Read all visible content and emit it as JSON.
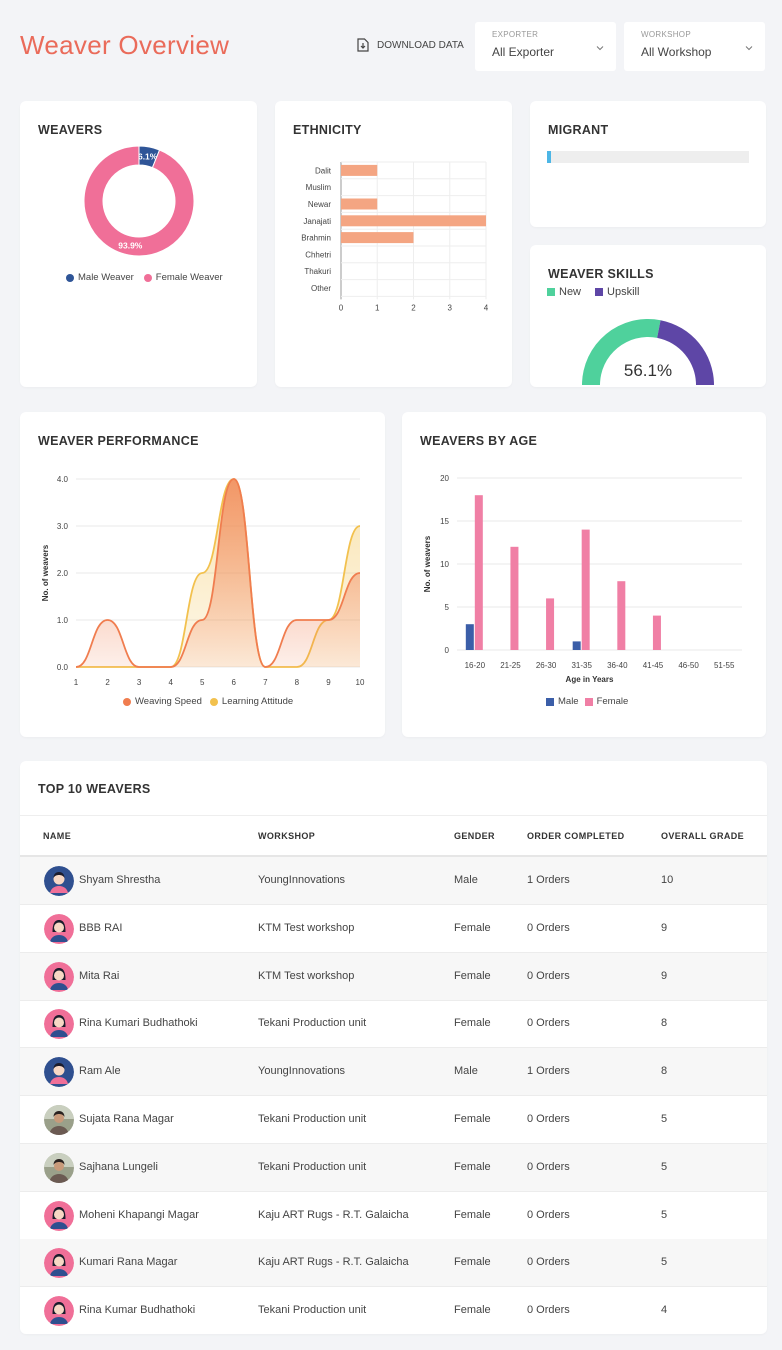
{
  "header": {
    "title": "Weaver Overview",
    "download_label": "DOWNLOAD DATA",
    "exporter": {
      "label": "EXPORTER",
      "value": "All Exporter"
    },
    "workshop": {
      "label": "WORKSHOP",
      "value": "All Workshop"
    }
  },
  "weavers_card": {
    "title": "WEAVERS",
    "chart_data": {
      "type": "pie",
      "categories": [
        "Male Weaver",
        "Female Weaver"
      ],
      "values": [
        6.1,
        93.9
      ],
      "labels": [
        "6.1%",
        "93.9%"
      ],
      "colors": [
        "#2f5597",
        "#f06f98"
      ]
    }
  },
  "ethnicity_card": {
    "title": "ETHNICITY",
    "chart_data": {
      "type": "bar",
      "orientation": "horizontal",
      "categories": [
        "Dalit",
        "Muslim",
        "Newar",
        "Janajati",
        "Brahmin",
        "Chhetri",
        "Thakuri",
        "Other"
      ],
      "values": [
        1,
        0,
        1,
        4,
        2,
        0,
        0,
        0
      ],
      "xlim": [
        0,
        4
      ],
      "xticks": [
        "0",
        "1",
        "2",
        "3",
        "4"
      ],
      "color": "#f4a582"
    }
  },
  "migrant_card": {
    "title": "MIGRANT",
    "progress_fraction": 0.02
  },
  "skills_card": {
    "title": "WEAVER SKILLS",
    "legend": [
      "New",
      "Upskill"
    ],
    "colors": [
      "#4fd19c",
      "#5e46a6"
    ],
    "center_label": "56.1%",
    "new_fraction": 0.561
  },
  "performance_card": {
    "title": "WEAVER PERFORMANCE",
    "chart_data": {
      "type": "area",
      "x": [
        1,
        2,
        3,
        4,
        5,
        6,
        7,
        8,
        9,
        10
      ],
      "series": [
        {
          "name": "Weaving Speed",
          "values": [
            0,
            1,
            0,
            0,
            1,
            4,
            0,
            1,
            1,
            2
          ],
          "color": "#f07d4f"
        },
        {
          "name": "Learning Attitude",
          "values": [
            0,
            0,
            0,
            0,
            2,
            4,
            0,
            0,
            1,
            3
          ],
          "color": "#f2c14e"
        }
      ],
      "ylabel": "No. of weavers",
      "ylim": [
        0,
        4
      ],
      "yticks": [
        "0.0",
        "1.0",
        "2.0",
        "3.0",
        "4.0"
      ],
      "xticks": [
        "1",
        "2",
        "3",
        "4",
        "5",
        "6",
        "7",
        "8",
        "9",
        "10"
      ]
    }
  },
  "age_card": {
    "title": "WEAVERS BY AGE",
    "chart_data": {
      "type": "bar",
      "categories": [
        "16-20",
        "21-25",
        "26-30",
        "31-35",
        "36-40",
        "41-45",
        "46-50",
        "51-55"
      ],
      "series": [
        {
          "name": "Male",
          "values": [
            3,
            0,
            0,
            1,
            0,
            0,
            0,
            0
          ],
          "color": "#3b5ea8"
        },
        {
          "name": "Female",
          "values": [
            18,
            12,
            6,
            14,
            8,
            4,
            0,
            0
          ],
          "color": "#f07fa5"
        }
      ],
      "ylabel": "No. of weavers",
      "xlabel": "Age in Years",
      "ylim": [
        0,
        20
      ],
      "yticks": [
        "0",
        "5",
        "10",
        "15",
        "20"
      ]
    }
  },
  "top_weavers": {
    "title": "TOP 10 WEAVERS",
    "columns": [
      "NAME",
      "WORKSHOP",
      "GENDER",
      "ORDER COMPLETED",
      "OVERALL GRADE"
    ],
    "rows": [
      {
        "name": "Shyam Shrestha",
        "workshop": "YoungInnovations",
        "gender": "Male",
        "orders": "1 Orders",
        "grade": "10",
        "avatar": "male-avatar-icon"
      },
      {
        "name": "BBB RAI",
        "workshop": "KTM Test workshop",
        "gender": "Female",
        "orders": "0 Orders",
        "grade": "9",
        "avatar": "female-avatar-icon"
      },
      {
        "name": "Mita Rai",
        "workshop": "KTM Test workshop",
        "gender": "Female",
        "orders": "0 Orders",
        "grade": "9",
        "avatar": "female-avatar-icon"
      },
      {
        "name": "Rina Kumari Budhathoki",
        "workshop": "Tekani Production unit",
        "gender": "Female",
        "orders": "0 Orders",
        "grade": "8",
        "avatar": "female-avatar-icon"
      },
      {
        "name": "Ram Ale",
        "workshop": "YoungInnovations",
        "gender": "Male",
        "orders": "1 Orders",
        "grade": "8",
        "avatar": "male-avatar-icon"
      },
      {
        "name": "Sujata Rana Magar",
        "workshop": "Tekani Production unit",
        "gender": "Female",
        "orders": "0 Orders",
        "grade": "5",
        "avatar": "photo-avatar-icon"
      },
      {
        "name": "Sajhana Lungeli",
        "workshop": "Tekani Production unit",
        "gender": "Female",
        "orders": "0 Orders",
        "grade": "5",
        "avatar": "photo-avatar-icon"
      },
      {
        "name": "Moheni Khapangi Magar",
        "workshop": "Kaju ART Rugs - R.T. Galaicha",
        "gender": "Female",
        "orders": "0 Orders",
        "grade": "5",
        "avatar": "female-avatar-icon"
      },
      {
        "name": "Kumari Rana Magar",
        "workshop": "Kaju ART Rugs - R.T. Galaicha",
        "gender": "Female",
        "orders": "0 Orders",
        "grade": "5",
        "avatar": "female-avatar-icon"
      },
      {
        "name": "Rina Kumar Budhathoki",
        "workshop": "Tekani Production unit",
        "gender": "Female",
        "orders": "0 Orders",
        "grade": "4",
        "avatar": "female-avatar-icon"
      }
    ]
  }
}
